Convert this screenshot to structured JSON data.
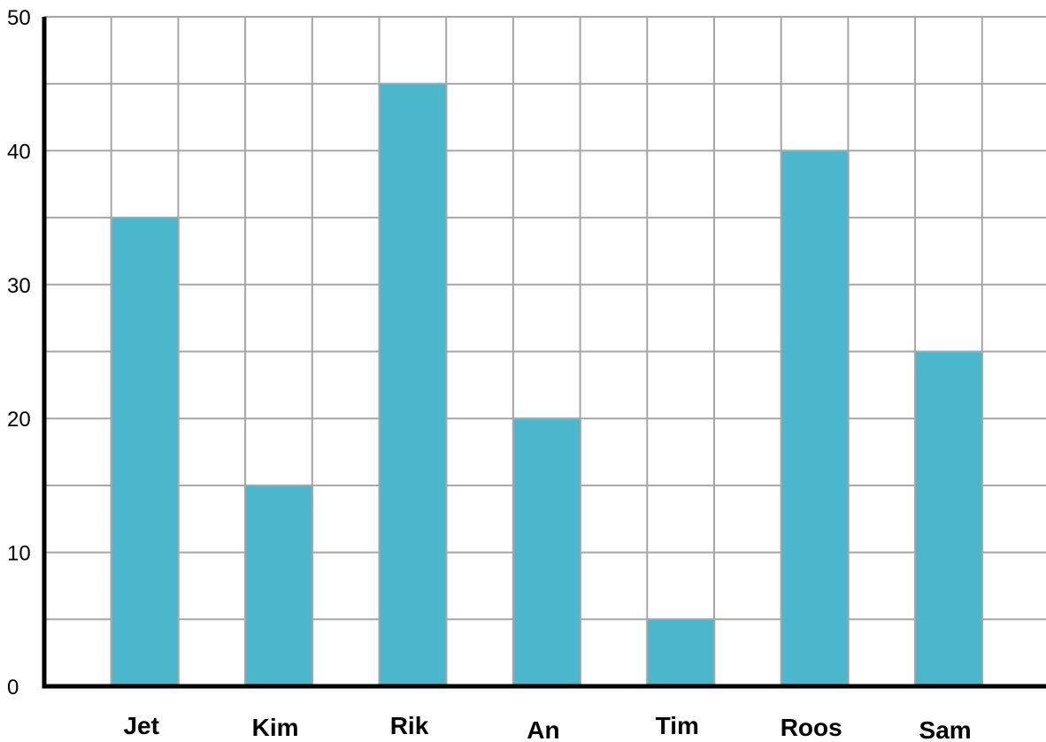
{
  "chart_data": {
    "type": "bar",
    "title": "",
    "xlabel": "",
    "ylabel": "",
    "categories": [
      "Jet",
      "Kim",
      "Rik",
      "An",
      "Tim",
      "Roos",
      "Sam"
    ],
    "values": [
      35,
      15,
      45,
      20,
      5,
      40,
      25
    ],
    "ylim": [
      0,
      50
    ],
    "y_ticks": [
      "0",
      "10",
      "20",
      "30",
      "40",
      "50"
    ],
    "grid": true,
    "bar_color": "#4ab7cc",
    "grid_color": "#a6a6a6",
    "axis_color": "#000000"
  }
}
